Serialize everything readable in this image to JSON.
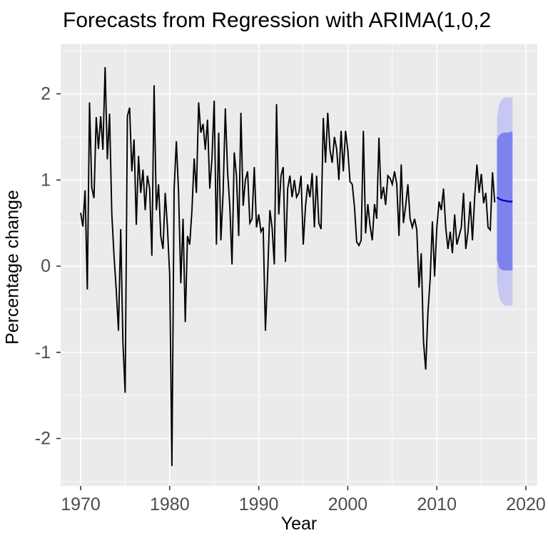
{
  "chart_data": {
    "type": "line",
    "title": "Forecasts from Regression with ARIMA(1,0,2",
    "xlabel": "Year",
    "ylabel": "Percentage change",
    "x_ticks": [
      1970,
      1980,
      1990,
      2000,
      2010,
      2020
    ],
    "x_minor_ticks": [
      1975,
      1985,
      1995,
      2005,
      2015
    ],
    "y_ticks": [
      -2,
      -1,
      0,
      1,
      2
    ],
    "y_minor_ticks": [
      -2.5,
      -1.5,
      -0.5,
      0.5,
      1.5,
      2.5
    ],
    "xlim": [
      1967.75,
      2021.3
    ],
    "ylim": [
      -2.56,
      2.58
    ],
    "grid": "on",
    "legend_position": "none",
    "series": [
      {
        "name": "observed-percentage-change",
        "x_start": 1970.0,
        "x_step": 0.25,
        "values": [
          0.62,
          0.46,
          0.88,
          -0.27,
          1.9,
          0.91,
          0.79,
          1.73,
          1.36,
          1.74,
          1.35,
          2.31,
          1.24,
          1.77,
          0.61,
          0.12,
          -0.28,
          -0.75,
          0.43,
          -0.89,
          -1.47,
          1.74,
          1.84,
          1.1,
          1.47,
          0.48,
          1.28,
          0.85,
          1.12,
          0.65,
          1.05,
          0.9,
          0.12,
          2.1,
          0.65,
          0.95,
          0.35,
          0.2,
          0.85,
          0.45,
          -0.1,
          -2.32,
          0.9,
          1.45,
          0.85,
          -0.2,
          0.55,
          -0.65,
          0.35,
          0.25,
          0.65,
          1.25,
          0.85,
          1.9,
          1.55,
          1.65,
          1.35,
          1.7,
          0.9,
          1.25,
          1.92,
          0.25,
          1.55,
          0.3,
          0.85,
          1.83,
          1.1,
          0.7,
          0.02,
          1.32,
          1.05,
          0.35,
          1.78,
          0.7,
          1.0,
          1.1,
          0.5,
          0.55,
          1.15,
          0.45,
          0.6,
          0.4,
          0.45,
          -0.75,
          -0.1,
          0.65,
          0.45,
          0.02,
          1.88,
          0.6,
          1.05,
          1.15,
          0.05,
          0.9,
          1.05,
          0.8,
          1.0,
          0.8,
          0.85,
          1.05,
          0.25,
          0.69,
          0.95,
          0.8,
          1.08,
          0.45,
          1.05,
          0.5,
          0.43,
          1.72,
          1.2,
          1.78,
          1.35,
          1.2,
          1.5,
          1.36,
          1.0,
          1.57,
          1.1,
          1.57,
          1.35,
          0.98,
          0.95,
          0.69,
          0.28,
          0.24,
          0.3,
          1.57,
          0.38,
          0.72,
          0.47,
          0.3,
          0.72,
          0.55,
          1.49,
          0.78,
          0.92,
          0.71,
          1.05,
          1.02,
          0.95,
          1.1,
          0.95,
          0.35,
          1.18,
          0.5,
          0.7,
          0.95,
          0.55,
          0.45,
          0.55,
          0.42,
          -0.25,
          0.15,
          -0.87,
          -1.2,
          -0.54,
          -0.15,
          0.52,
          -0.12,
          0.45,
          0.75,
          0.65,
          0.9,
          0.45,
          0.2,
          0.4,
          0.15,
          0.6,
          0.25,
          0.35,
          0.45,
          0.85,
          0.2,
          0.4,
          0.75,
          0.3,
          0.8,
          1.18,
          0.85,
          1.07,
          0.73,
          0.85,
          0.45,
          0.42,
          1.09,
          0.74
        ]
      }
    ],
    "forecast": {
      "x_start": 2016.75,
      "x_step": 0.25,
      "mean": [
        0.8,
        0.78,
        0.77,
        0.76,
        0.76,
        0.75,
        0.75,
        0.75
      ],
      "hi80": [
        1.47,
        1.52,
        1.54,
        1.55,
        1.55,
        1.55,
        1.56,
        1.56
      ],
      "lo80": [
        0.08,
        -0.02,
        -0.04,
        -0.05,
        -0.05,
        -0.05,
        -0.05,
        -0.05
      ],
      "hi95": [
        1.72,
        1.88,
        1.93,
        1.95,
        1.96,
        1.96,
        1.96,
        1.96
      ],
      "lo95": [
        -0.18,
        -0.36,
        -0.42,
        -0.45,
        -0.46,
        -0.46,
        -0.46,
        -0.46
      ]
    },
    "colors": {
      "panel_background": "#EBEBEB",
      "gridline": "#FFFFFF",
      "series_line": "#000000",
      "forecast_line": "#0000BF",
      "interval_80": "#7E82ED",
      "interval_95": "#C6C8F2",
      "tick_label": "#4D4D4D",
      "tick_mark": "#333333",
      "title_text": "#000000"
    }
  }
}
